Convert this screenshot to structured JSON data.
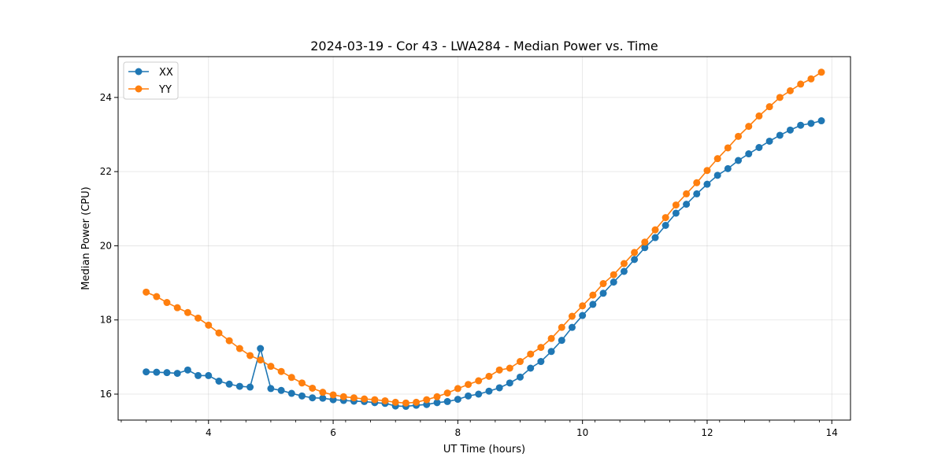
{
  "chart_data": {
    "type": "line",
    "title": "2024-03-19 - Cor 43 - LWA284 - Median Power vs. Time",
    "xlabel": "UT Time (hours)",
    "ylabel": "Median Power (CPU)",
    "xlim": [
      2.55,
      14.3
    ],
    "ylim": [
      15.3,
      25.1
    ],
    "xticks": [
      4,
      6,
      8,
      10,
      12,
      14
    ],
    "yticks": [
      16,
      18,
      20,
      22,
      24
    ],
    "grid": true,
    "legend_position": "top-left",
    "x": [
      3.0,
      3.167,
      3.333,
      3.5,
      3.667,
      3.833,
      4.0,
      4.167,
      4.333,
      4.5,
      4.667,
      4.833,
      5.0,
      5.167,
      5.333,
      5.5,
      5.667,
      5.833,
      6.0,
      6.167,
      6.333,
      6.5,
      6.667,
      6.833,
      7.0,
      7.167,
      7.333,
      7.5,
      7.667,
      7.833,
      8.0,
      8.167,
      8.333,
      8.5,
      8.667,
      8.833,
      9.0,
      9.167,
      9.333,
      9.5,
      9.667,
      9.833,
      10.0,
      10.167,
      10.333,
      10.5,
      10.667,
      10.833,
      11.0,
      11.167,
      11.333,
      11.5,
      11.667,
      11.833,
      12.0,
      12.167,
      12.333,
      12.5,
      12.667,
      12.833,
      13.0,
      13.167,
      13.333,
      13.5,
      13.667,
      13.833
    ],
    "series": [
      {
        "name": "XX",
        "color": "#1f77b4",
        "values": [
          16.6,
          16.59,
          16.58,
          16.56,
          16.65,
          16.5,
          16.5,
          16.35,
          16.27,
          16.21,
          16.19,
          17.23,
          16.15,
          16.1,
          16.02,
          15.95,
          15.9,
          15.89,
          15.85,
          15.83,
          15.81,
          15.8,
          15.77,
          15.75,
          15.68,
          15.67,
          15.7,
          15.72,
          15.77,
          15.8,
          15.86,
          15.95,
          16.0,
          16.08,
          16.17,
          16.3,
          16.46,
          16.7,
          16.88,
          17.15,
          17.45,
          17.8,
          18.12,
          18.42,
          18.72,
          19.02,
          19.31,
          19.63,
          19.95,
          20.22,
          20.55,
          20.88,
          21.12,
          21.4,
          21.66,
          21.9,
          22.08,
          22.3,
          22.48,
          22.65,
          22.82,
          22.98,
          23.12,
          23.25,
          23.3,
          23.37
        ]
      },
      {
        "name": "YY",
        "color": "#ff7f0e",
        "values": [
          18.75,
          18.63,
          18.47,
          18.33,
          18.2,
          18.05,
          17.86,
          17.65,
          17.44,
          17.23,
          17.04,
          16.92,
          16.75,
          16.61,
          16.45,
          16.3,
          16.16,
          16.05,
          15.98,
          15.93,
          15.9,
          15.87,
          15.85,
          15.82,
          15.78,
          15.76,
          15.78,
          15.85,
          15.93,
          16.03,
          16.15,
          16.26,
          16.36,
          16.48,
          16.65,
          16.7,
          16.88,
          17.08,
          17.26,
          17.5,
          17.8,
          18.1,
          18.38,
          18.67,
          18.98,
          19.22,
          19.52,
          19.82,
          20.1,
          20.43,
          20.76,
          21.1,
          21.4,
          21.7,
          22.03,
          22.35,
          22.64,
          22.95,
          23.22,
          23.5,
          23.75,
          24.0,
          24.18,
          24.36,
          24.5,
          24.68
        ]
      }
    ]
  }
}
